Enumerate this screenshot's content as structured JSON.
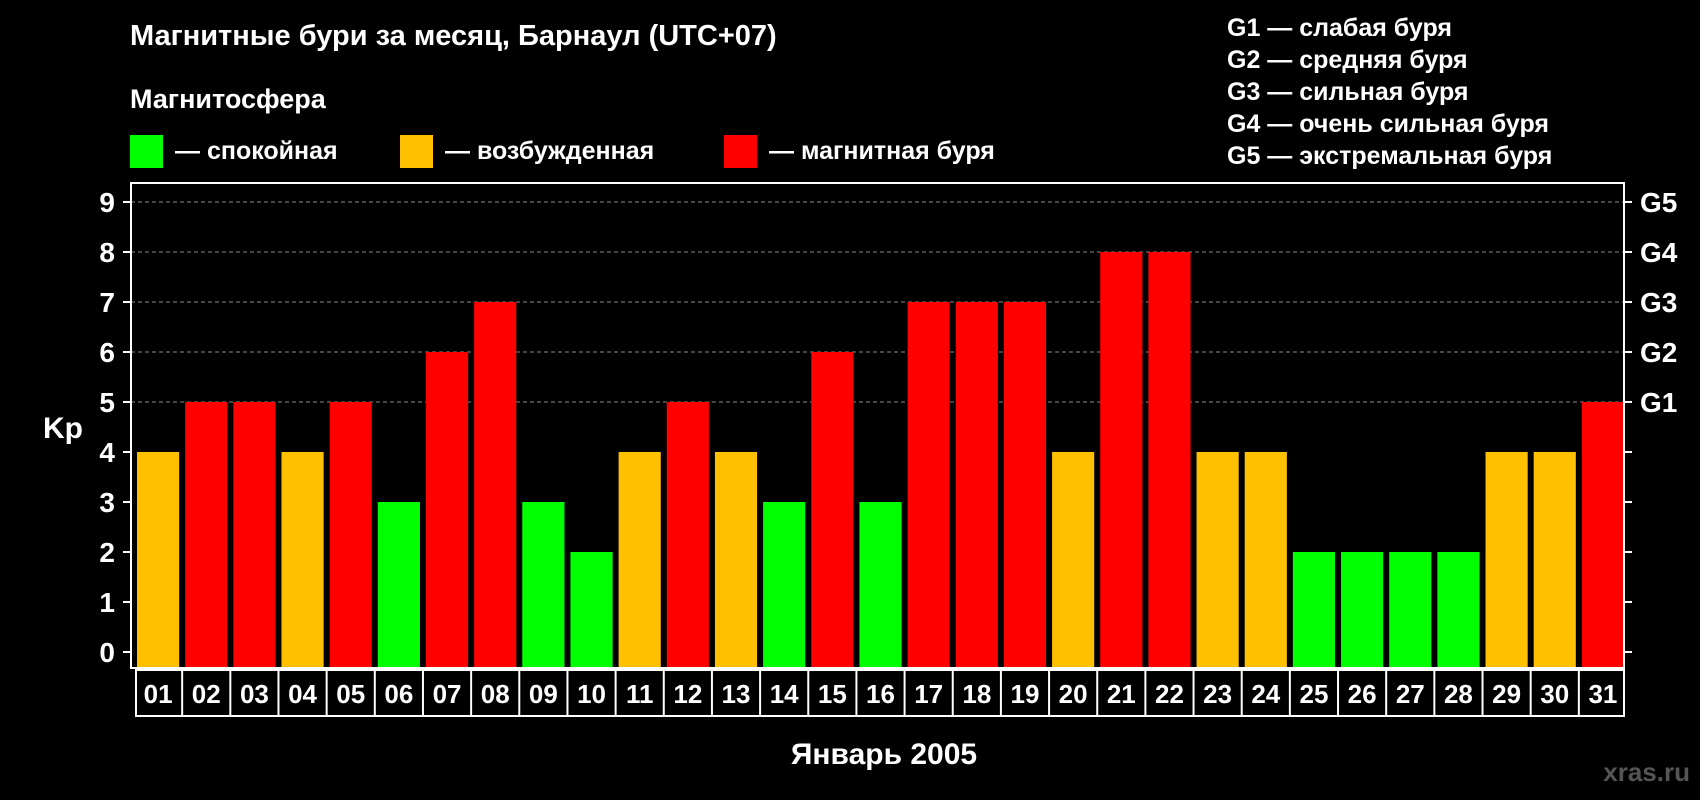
{
  "chart_data": {
    "type": "bar",
    "title": "Магнитные бури за месяц, Барнаул (UTC+07)",
    "subtitle": "Магнитосфера",
    "xlabel": "Январь 2005",
    "ylabel": "Kp",
    "ylim": [
      0,
      9
    ],
    "yticks": [
      "0",
      "1",
      "2",
      "3",
      "4",
      "5",
      "6",
      "7",
      "8",
      "9"
    ],
    "right_ticks": [
      {
        "value": 5,
        "label": "G1"
      },
      {
        "value": 6,
        "label": "G2"
      },
      {
        "value": 7,
        "label": "G3"
      },
      {
        "value": 8,
        "label": "G4"
      },
      {
        "value": 9,
        "label": "G5"
      }
    ],
    "categories": [
      "01",
      "02",
      "03",
      "04",
      "05",
      "06",
      "07",
      "08",
      "09",
      "10",
      "11",
      "12",
      "13",
      "14",
      "15",
      "16",
      "17",
      "18",
      "19",
      "20",
      "21",
      "22",
      "23",
      "24",
      "25",
      "26",
      "27",
      "28",
      "29",
      "30",
      "31"
    ],
    "values": [
      4,
      5,
      5,
      4,
      5,
      3,
      6,
      7,
      3,
      2,
      4,
      5,
      4,
      3,
      6,
      3,
      7,
      7,
      7,
      4,
      8,
      8,
      4,
      4,
      2,
      2,
      2,
      2,
      4,
      4,
      5
    ],
    "grid": true,
    "color_rule": {
      "calm_max": 3,
      "excited_value": 4,
      "storm_min": 5
    }
  },
  "colors": {
    "calm": "#00ff00",
    "excited": "#ffc000",
    "storm": "#ff0000",
    "background": "#000000",
    "grid": "#888888"
  },
  "legend": [
    {
      "label": "— спокойная",
      "color": "#00ff00"
    },
    {
      "label": "— возбужденная",
      "color": "#ffc000"
    },
    {
      "label": "— магнитная буря",
      "color": "#ff0000"
    }
  ],
  "storm_legend": [
    "G1 — слабая буря",
    "G2 — средняя буря",
    "G3 — сильная буря",
    "G4 — очень сильная буря",
    "G5 — экстремальная буря"
  ],
  "watermark": "xras.ru"
}
